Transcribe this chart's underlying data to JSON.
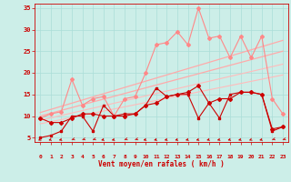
{
  "background_color": "#cceee8",
  "grid_color": "#aaddd8",
  "xlabel": "Vent moyen/en rafales ( km/h )",
  "ylim": [
    4,
    36
  ],
  "xlim": [
    -0.5,
    23.5
  ],
  "yticks": [
    5,
    10,
    15,
    20,
    25,
    30,
    35
  ],
  "xticks": [
    0,
    1,
    2,
    3,
    4,
    5,
    6,
    7,
    8,
    9,
    10,
    11,
    12,
    13,
    14,
    15,
    16,
    17,
    18,
    19,
    20,
    21,
    22,
    23
  ],
  "line_dark1": {
    "x": [
      0,
      1,
      2,
      3,
      4,
      5,
      6,
      7,
      8,
      9,
      10,
      11,
      12,
      13,
      14,
      15,
      16,
      17,
      18,
      19,
      20,
      21,
      22,
      23
    ],
    "y": [
      9.5,
      8.5,
      8.5,
      9.5,
      10.5,
      10.5,
      10.0,
      10.0,
      10.0,
      10.5,
      12.5,
      13.0,
      14.5,
      15.0,
      15.5,
      17.0,
      13.0,
      14.0,
      14.0,
      15.5,
      15.5,
      15.0,
      7.0,
      7.5
    ],
    "color": "#cc0000",
    "lw": 0.8,
    "marker": "D",
    "ms": 2.0
  },
  "line_dark2": {
    "x": [
      0,
      1,
      2,
      3,
      4,
      5,
      6,
      7,
      8,
      9,
      10,
      11,
      12,
      13,
      14,
      15,
      16,
      17,
      18,
      19,
      20,
      21,
      22,
      23
    ],
    "y": [
      5.0,
      5.5,
      6.5,
      10.0,
      10.0,
      6.5,
      12.5,
      10.0,
      10.5,
      10.5,
      12.5,
      16.5,
      14.5,
      15.0,
      15.0,
      9.5,
      13.0,
      9.5,
      15.0,
      15.5,
      15.5,
      15.0,
      6.5,
      7.5
    ],
    "color": "#cc0000",
    "lw": 0.8,
    "marker": "s",
    "ms": 1.8
  },
  "line_light_jagged": {
    "x": [
      0,
      1,
      2,
      3,
      4,
      5,
      6,
      7,
      8,
      9,
      10,
      11,
      12,
      13,
      14,
      15,
      16,
      17,
      18,
      19,
      20,
      21,
      22,
      23
    ],
    "y": [
      9.5,
      10.5,
      11.0,
      18.5,
      12.5,
      14.0,
      14.5,
      10.0,
      14.0,
      14.5,
      20.0,
      26.5,
      27.0,
      29.5,
      26.5,
      35.0,
      28.0,
      28.5,
      23.5,
      28.5,
      23.5,
      28.5,
      14.0,
      10.5
    ],
    "color": "#ff8888",
    "lw": 0.8,
    "marker": "D",
    "ms": 2.0
  },
  "trend_lines": [
    {
      "x0": 0,
      "y0": 10.8,
      "x1": 23,
      "y1": 27.5,
      "color": "#ffaaaa",
      "lw": 0.9
    },
    {
      "x0": 0,
      "y0": 10.0,
      "x1": 23,
      "y1": 25.0,
      "color": "#ffaaaa",
      "lw": 0.9
    },
    {
      "x0": 0,
      "y0": 9.0,
      "x1": 23,
      "y1": 22.0,
      "color": "#ffbbbb",
      "lw": 0.8
    },
    {
      "x0": 0,
      "y0": 8.2,
      "x1": 23,
      "y1": 19.5,
      "color": "#ffbbbb",
      "lw": 0.8
    }
  ],
  "arrows": {
    "x": [
      0,
      1,
      2,
      3,
      4,
      5,
      6,
      7,
      8,
      9,
      10,
      11,
      12,
      13,
      14,
      15,
      16,
      17,
      18,
      19,
      20,
      21,
      22,
      23
    ],
    "angles_deg": [
      225,
      220,
      215,
      210,
      210,
      210,
      215,
      215,
      210,
      210,
      215,
      215,
      215,
      215,
      215,
      215,
      215,
      215,
      215,
      215,
      225,
      215,
      210,
      210
    ],
    "color": "#cc0000",
    "y": 4.55
  }
}
